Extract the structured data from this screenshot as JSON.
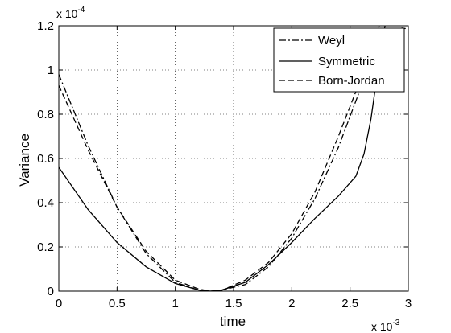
{
  "chart_data": {
    "type": "line",
    "xlabel": "time",
    "ylabel": "Variance",
    "x_multiplier": "x 10",
    "x_multiplier_exp": "-3",
    "y_multiplier": "x 10",
    "y_multiplier_exp": "-4",
    "xlim": [
      0,
      3
    ],
    "ylim": [
      0,
      1.2
    ],
    "grid": true,
    "legend_position": "top-right",
    "x_ticks": [
      0,
      0.5,
      1,
      1.5,
      2,
      2.5,
      3
    ],
    "x_tick_labels": [
      "0",
      "0.5",
      "1",
      "1.5",
      "2",
      "2.5",
      "3"
    ],
    "y_ticks": [
      0,
      0.2,
      0.4,
      0.6,
      0.8,
      1.0,
      1.2
    ],
    "y_tick_labels": [
      "0",
      "0.2",
      "0.4",
      "0.6",
      "0.8",
      "1",
      "1.2"
    ],
    "series": [
      {
        "name": "Weyl",
        "style": "dashdot",
        "color": "#000000",
        "x": [
          0,
          0.25,
          0.5,
          0.75,
          1.0,
          1.2,
          1.3,
          1.4,
          1.6,
          1.8,
          2.0,
          2.2,
          2.4,
          2.6,
          2.7,
          2.8,
          2.9,
          2.95,
          3.0
        ],
        "y": [
          0.98,
          0.66,
          0.38,
          0.17,
          0.04,
          0.005,
          0.0,
          0.005,
          0.03,
          0.11,
          0.24,
          0.42,
          0.65,
          0.93,
          1.06,
          1.15,
          1.185,
          1.19,
          1.185
        ]
      },
      {
        "name": "Symmetric",
        "style": "solid",
        "color": "#000000",
        "x": [
          0,
          0.25,
          0.5,
          0.75,
          1.0,
          1.2,
          1.3,
          1.4,
          1.6,
          1.8,
          2.0,
          2.2,
          2.4,
          2.55,
          2.62,
          2.68,
          2.72,
          2.76,
          2.8
        ],
        "y": [
          0.56,
          0.37,
          0.22,
          0.11,
          0.035,
          0.005,
          0.0,
          0.005,
          0.04,
          0.12,
          0.22,
          0.33,
          0.43,
          0.52,
          0.62,
          0.78,
          0.93,
          1.08,
          1.2
        ]
      },
      {
        "name": "Born-Jordan",
        "style": "dashed",
        "color": "#000000",
        "x": [
          0,
          0.25,
          0.5,
          0.75,
          1.0,
          1.2,
          1.3,
          1.4,
          1.6,
          1.8,
          2.0,
          2.2,
          2.4,
          2.6,
          2.7,
          2.75
        ],
        "y": [
          0.93,
          0.64,
          0.38,
          0.18,
          0.05,
          0.01,
          0.0,
          0.004,
          0.05,
          0.13,
          0.26,
          0.45,
          0.7,
          0.97,
          1.12,
          1.2
        ]
      }
    ]
  }
}
